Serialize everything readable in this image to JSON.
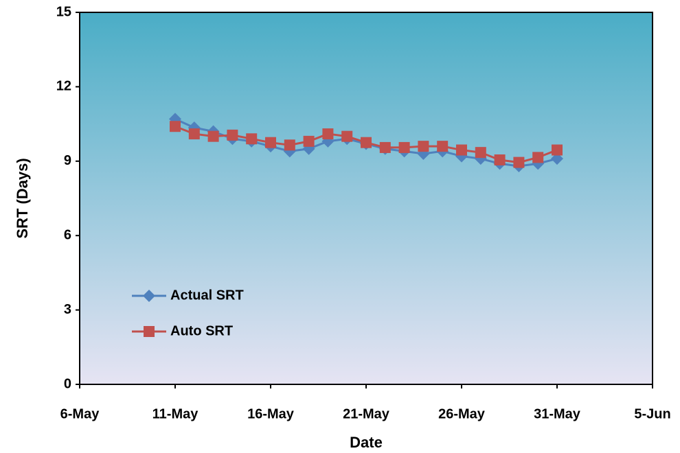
{
  "chart_data": {
    "type": "line",
    "x_label": "Date",
    "y_label": "SRT (Days)",
    "x": [
      "11-May",
      "12-May",
      "13-May",
      "14-May",
      "15-May",
      "16-May",
      "17-May",
      "18-May",
      "19-May",
      "20-May",
      "21-May",
      "22-May",
      "23-May",
      "24-May",
      "25-May",
      "26-May",
      "27-May",
      "28-May",
      "29-May",
      "30-May",
      "31-May"
    ],
    "series": [
      {
        "name": "Actual SRT",
        "color": "#4f81bd",
        "marker": "diamond",
        "values": [
          10.7,
          10.35,
          10.2,
          9.9,
          9.8,
          9.6,
          9.4,
          9.5,
          9.8,
          9.9,
          9.7,
          9.5,
          9.4,
          9.3,
          9.4,
          9.2,
          9.1,
          8.9,
          8.8,
          8.9,
          9.1
        ]
      },
      {
        "name": "Auto SRT",
        "color": "#c0504d",
        "marker": "square",
        "values": [
          10.4,
          10.1,
          10.0,
          10.05,
          9.9,
          9.75,
          9.65,
          9.8,
          10.1,
          10.0,
          9.75,
          9.55,
          9.55,
          9.6,
          9.6,
          9.45,
          9.35,
          9.05,
          8.95,
          9.15,
          9.45
        ]
      }
    ],
    "xlim": [
      "6-May",
      "5-Jun"
    ],
    "xticks": [
      "6-May",
      "11-May",
      "16-May",
      "21-May",
      "26-May",
      "31-May",
      "5-Jun"
    ],
    "ylim": [
      0,
      15
    ],
    "yticks": [
      0,
      3,
      6,
      9,
      12,
      15
    ],
    "legend": "lower left"
  }
}
